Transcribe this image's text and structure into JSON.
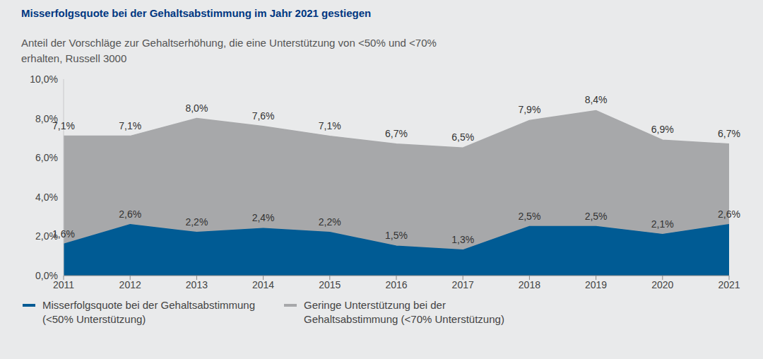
{
  "chart_data": {
    "type": "area",
    "title": "Misserfolgsquote bei der Gehaltsabstimmung im Jahr 2021 gestiegen",
    "subtitle": "Anteil der Vorschläge zur Gehaltserhöhung, die eine Unterstützung von <50% und <70% erhalten, Russell 3000",
    "categories": [
      "2011",
      "2012",
      "2013",
      "2014",
      "2015",
      "2016",
      "2017",
      "2018",
      "2019",
      "2020",
      "2021"
    ],
    "series": [
      {
        "name": "Misserfolgsquote bei der Gehaltsabstimmung (<50% Unterstützung)",
        "color": "#005b94",
        "values": [
          1.6,
          2.6,
          2.2,
          2.4,
          2.2,
          1.5,
          1.3,
          2.5,
          2.5,
          2.1,
          2.6
        ],
        "value_labels": [
          "1,6%",
          "2,6%",
          "2,2%",
          "2,4%",
          "2,2%",
          "1,5%",
          "1,3%",
          "2,5%",
          "2,5%",
          "2,1%",
          "2,6%"
        ]
      },
      {
        "name": "Geringe Unterstützung bei der Gehaltsabstimmung (<70% Unterstützung)",
        "color": "#a7a8aa",
        "values": [
          7.1,
          7.1,
          8.0,
          7.6,
          7.1,
          6.7,
          6.5,
          7.9,
          8.4,
          6.9,
          6.7
        ],
        "value_labels": [
          "7,1%",
          "7,1%",
          "8,0%",
          "7,6%",
          "7,1%",
          "6,7%",
          "6,5%",
          "7,9%",
          "8,4%",
          "6,9%",
          "6,7%"
        ]
      }
    ],
    "ylim": [
      0,
      10
    ],
    "yticks": [
      {
        "value": 0,
        "label": "0,0%"
      },
      {
        "value": 2,
        "label": "2,0%"
      },
      {
        "value": 4,
        "label": "4,0%"
      },
      {
        "value": 6,
        "label": "6,0%"
      },
      {
        "value": 8,
        "label": "8,0%"
      },
      {
        "value": 10,
        "label": "10,0%"
      }
    ],
    "data_labels": true,
    "stacked": false,
    "grid": false,
    "legend": "bottom-left"
  }
}
